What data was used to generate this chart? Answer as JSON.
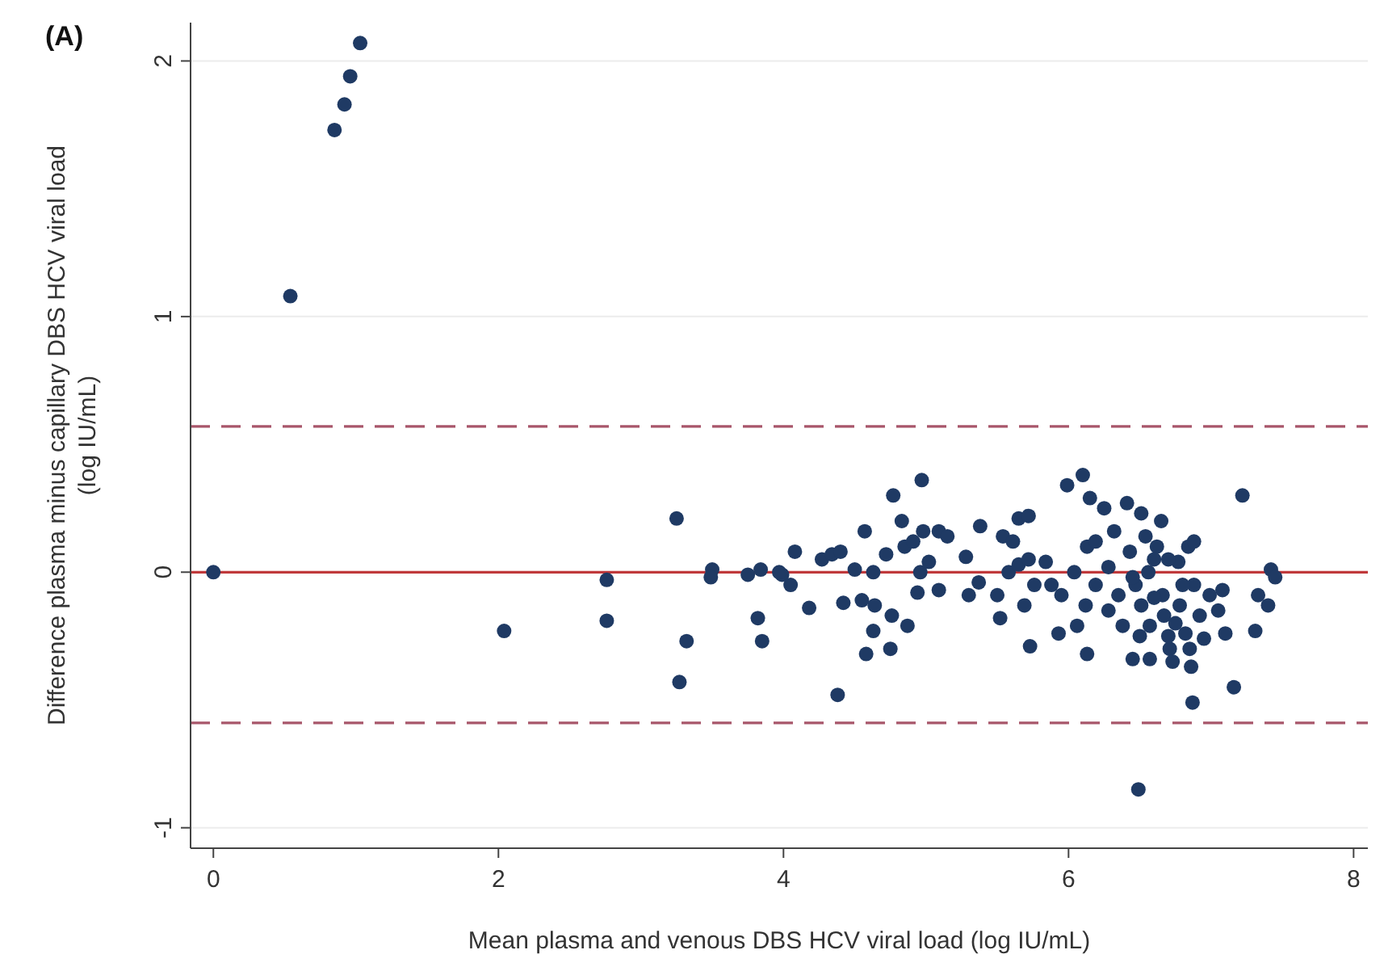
{
  "chart_data": {
    "type": "scatter",
    "xlabel": "Mean plasma and venous DBS HCV viral load (log IU/mL)",
    "ylabel": "Difference plasma minus capillary DBS HCV viral load (log IU/mL)",
    "annotations": [
      "(A)"
    ],
    "xlim": [
      -0.16,
      8.1
    ],
    "ylim": [
      -1.08,
      2.15
    ],
    "xticks": [
      0,
      2,
      4,
      6,
      8
    ],
    "yticks": [
      -1,
      0,
      1,
      2
    ],
    "grid": "y",
    "marker": "circle",
    "ref_lines": [
      {
        "axis": "y",
        "value": 0.57,
        "color": "#a8566a",
        "line_style": "dashed"
      },
      {
        "axis": "y",
        "value": 0,
        "color": "#c0393b",
        "line_style": "solid"
      },
      {
        "axis": "y",
        "value": -0.59,
        "color": "#a8566a",
        "line_style": "dashed"
      }
    ],
    "series": [
      {
        "color": "#1f3a64",
        "x": [
          1.03,
          0.96,
          0.92,
          0.85,
          0.54,
          0,
          2.04,
          2.76,
          2.76,
          3.25,
          3.32,
          3.27,
          3.5,
          3.49,
          3.75,
          3.84,
          3.82,
          3.85,
          3.99,
          4.05,
          4.08,
          3.97,
          4.18,
          4.27,
          4.34,
          4.4,
          4.38,
          4.42,
          4.5,
          4.57,
          4.55,
          4.63,
          4.64,
          4.63,
          4.58,
          4.75,
          4.76,
          4.72,
          4.77,
          4.83,
          4.87,
          4.85,
          4.91,
          4.97,
          4.98,
          4.96,
          4.94,
          5.02,
          5.09,
          5.09,
          5.15,
          5.28,
          5.3,
          5.37,
          5.38,
          5.5,
          5.52,
          5.54,
          5.61,
          5.65,
          5.72,
          5.58,
          5.65,
          5.72,
          5.69,
          5.73,
          5.76,
          5.84,
          5.88,
          5.93,
          5.95,
          5.99,
          6.04,
          6.06,
          6.1,
          6.13,
          6.12,
          6.13,
          6.15,
          6.19,
          6.19,
          6.25,
          6.28,
          6.28,
          6.32,
          6.35,
          6.38,
          6.41,
          6.43,
          6.45,
          6.47,
          6.51,
          6.51,
          6.54,
          6.56,
          6.57,
          6.57,
          6.62,
          6.66,
          6.67,
          6.71,
          6.73,
          6.77,
          6.78,
          6.82,
          6.84,
          6.86,
          6.88,
          6.88,
          6.87,
          6.92,
          6.95,
          6.99,
          7.05,
          7.08,
          7.1,
          7.16,
          7.22,
          7.31,
          7.33,
          7.4,
          7.42,
          7.45,
          6.49,
          6.45,
          6.6,
          6.7,
          6.75,
          6.8,
          6.65,
          6.5,
          6.85,
          6.7,
          6.6
        ],
        "values": [
          2.07,
          1.94,
          1.83,
          1.73,
          1.08,
          0,
          -0.23,
          -0.03,
          -0.19,
          0.21,
          -0.27,
          -0.43,
          0.01,
          -0.02,
          -0.01,
          0.01,
          -0.18,
          -0.27,
          -0.01,
          -0.05,
          0.08,
          0,
          -0.14,
          0.05,
          0.07,
          0.08,
          -0.48,
          -0.12,
          0.01,
          0.16,
          -0.11,
          0,
          -0.13,
          -0.23,
          -0.32,
          -0.3,
          -0.17,
          0.07,
          0.3,
          0.2,
          -0.21,
          0.1,
          0.12,
          0.36,
          0.16,
          0,
          -0.08,
          0.04,
          -0.07,
          0.16,
          0.14,
          0.06,
          -0.09,
          -0.04,
          0.18,
          -0.09,
          -0.18,
          0.14,
          0.12,
          0.21,
          0.22,
          0,
          0.03,
          0.05,
          -0.13,
          -0.29,
          -0.05,
          0.04,
          -0.05,
          -0.24,
          -0.09,
          0.34,
          0,
          -0.21,
          0.38,
          -0.32,
          -0.13,
          0.1,
          0.29,
          0.12,
          -0.05,
          0.25,
          0.02,
          -0.15,
          0.16,
          -0.09,
          -0.21,
          0.27,
          0.08,
          -0.34,
          -0.05,
          0.23,
          -0.13,
          0.14,
          0,
          -0.34,
          -0.21,
          0.1,
          -0.09,
          -0.17,
          -0.3,
          -0.35,
          0.04,
          -0.13,
          -0.24,
          0.1,
          -0.37,
          0.12,
          -0.05,
          -0.51,
          -0.17,
          -0.26,
          -0.09,
          -0.15,
          -0.07,
          -0.24,
          -0.45,
          0.3,
          -0.23,
          -0.09,
          -0.13,
          0.01,
          -0.02,
          -0.85,
          -0.02,
          -0.1,
          0.05,
          -0.2,
          -0.05,
          0.2,
          -0.25,
          -0.3,
          -0.25,
          0.05
        ]
      }
    ]
  }
}
